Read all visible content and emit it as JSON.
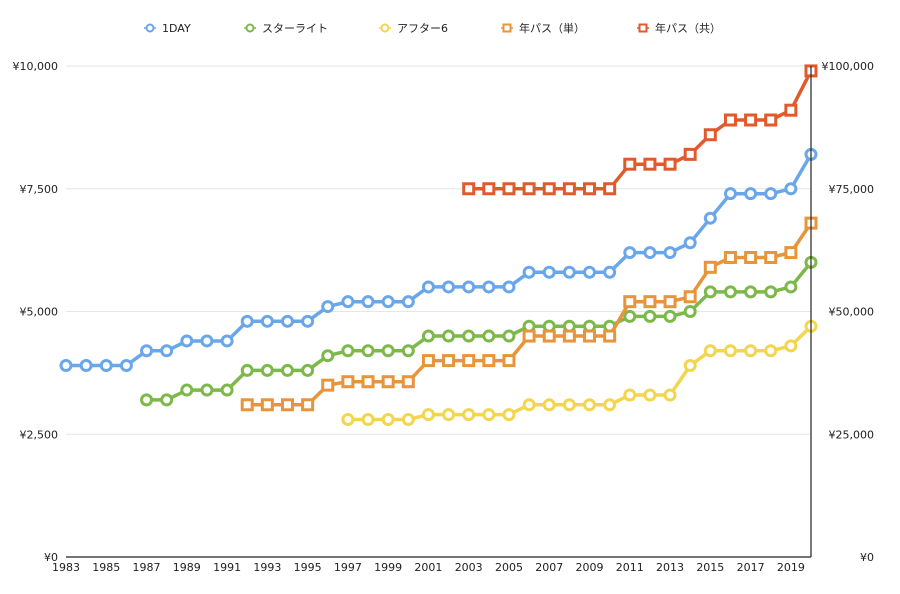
{
  "chart_data": {
    "type": "line",
    "title": "",
    "xlabel": "",
    "ylabel": "",
    "x_start": 1983,
    "x_end": 2020,
    "x_tick_labels": [
      "1983",
      "1985",
      "1987",
      "1989",
      "1991",
      "1993",
      "1995",
      "1997",
      "1999",
      "2001",
      "2003",
      "2005",
      "2007",
      "2009",
      "2011",
      "2013",
      "2015",
      "2017",
      "2019"
    ],
    "left_axis": {
      "ylim": [
        0,
        10000
      ],
      "ticks": [
        0,
        2500,
        5000,
        7500,
        10000
      ],
      "tick_labels": [
        "¥0",
        "¥2,500",
        "¥5,000",
        "¥7,500",
        "¥10,000"
      ]
    },
    "right_axis": {
      "ylim": [
        0,
        100000
      ],
      "ticks": [
        0,
        25000,
        50000,
        75000,
        100000
      ],
      "tick_labels": [
        "¥0",
        "¥25,000",
        "¥50,000",
        "¥75,000",
        "¥100,000"
      ]
    },
    "legend_position": "top",
    "series": [
      {
        "name": "1DAY",
        "axis": "left",
        "marker": "circle",
        "color": "#6aa6ea",
        "x": [
          1983,
          1984,
          1985,
          1986,
          1987,
          1988,
          1989,
          1990,
          1991,
          1992,
          1993,
          1994,
          1995,
          1996,
          1997,
          1998,
          1999,
          2000,
          2001,
          2002,
          2003,
          2004,
          2005,
          2006,
          2007,
          2008,
          2009,
          2010,
          2011,
          2012,
          2013,
          2014,
          2015,
          2016,
          2017,
          2018,
          2019,
          2020
        ],
        "values": [
          3900,
          3900,
          3900,
          3900,
          4200,
          4200,
          4400,
          4400,
          4400,
          4800,
          4800,
          4800,
          4800,
          5100,
          5200,
          5200,
          5200,
          5200,
          5500,
          5500,
          5500,
          5500,
          5500,
          5800,
          5800,
          5800,
          5800,
          5800,
          6200,
          6200,
          6200,
          6400,
          6900,
          7400,
          7400,
          7400,
          7500,
          8200
        ]
      },
      {
        "name": "スターライト",
        "axis": "left",
        "marker": "circle",
        "color": "#7db84a",
        "x": [
          1987,
          1988,
          1989,
          1990,
          1991,
          1992,
          1993,
          1994,
          1995,
          1996,
          1997,
          1998,
          1999,
          2000,
          2001,
          2002,
          2003,
          2004,
          2005,
          2006,
          2007,
          2008,
          2009,
          2010,
          2011,
          2012,
          2013,
          2014,
          2015,
          2016,
          2017,
          2018,
          2019,
          2020
        ],
        "values": [
          3200,
          3200,
          3400,
          3400,
          3400,
          3800,
          3800,
          3800,
          3800,
          4100,
          4200,
          4200,
          4200,
          4200,
          4500,
          4500,
          4500,
          4500,
          4500,
          4700,
          4700,
          4700,
          4700,
          4700,
          4900,
          4900,
          4900,
          5000,
          5400,
          5400,
          5400,
          5400,
          5500,
          6000
        ]
      },
      {
        "name": "アフター6",
        "axis": "left",
        "marker": "circle",
        "color": "#f3d54e",
        "x": [
          1997,
          1998,
          1999,
          2000,
          2001,
          2002,
          2003,
          2004,
          2005,
          2006,
          2007,
          2008,
          2009,
          2010,
          2011,
          2012,
          2013,
          2014,
          2015,
          2016,
          2017,
          2018,
          2019,
          2020
        ],
        "values": [
          2800,
          2800,
          2800,
          2800,
          2900,
          2900,
          2900,
          2900,
          2900,
          3100,
          3100,
          3100,
          3100,
          3100,
          3300,
          3300,
          3300,
          3900,
          4200,
          4200,
          4200,
          4200,
          4300,
          4700
        ]
      },
      {
        "name": "年パス（単）",
        "axis": "right",
        "marker": "square",
        "color": "#e8943a",
        "x": [
          1992,
          1993,
          1994,
          1995,
          1996,
          1997,
          1998,
          1999,
          2000,
          2001,
          2002,
          2003,
          2004,
          2005,
          2006,
          2007,
          2008,
          2009,
          2010,
          2011,
          2012,
          2013,
          2014,
          2015,
          2016,
          2017,
          2018,
          2019,
          2020
        ],
        "values": [
          31000,
          31000,
          31000,
          31000,
          35000,
          35700,
          35700,
          35700,
          35700,
          40000,
          40000,
          40000,
          40000,
          40000,
          45000,
          45000,
          45000,
          45000,
          45000,
          52000,
          52000,
          52000,
          53000,
          59000,
          61000,
          61000,
          61000,
          62000,
          68000
        ]
      },
      {
        "name": "年パス（共）",
        "axis": "right",
        "marker": "square",
        "color": "#e05a2b",
        "x": [
          2003,
          2004,
          2005,
          2006,
          2007,
          2008,
          2009,
          2010,
          2011,
          2012,
          2013,
          2014,
          2015,
          2016,
          2017,
          2018,
          2019,
          2020
        ],
        "values": [
          75000,
          75000,
          75000,
          75000,
          75000,
          75000,
          75000,
          75000,
          80000,
          80000,
          80000,
          82000,
          86000,
          89000,
          89000,
          89000,
          91000,
          99000
        ]
      }
    ]
  }
}
